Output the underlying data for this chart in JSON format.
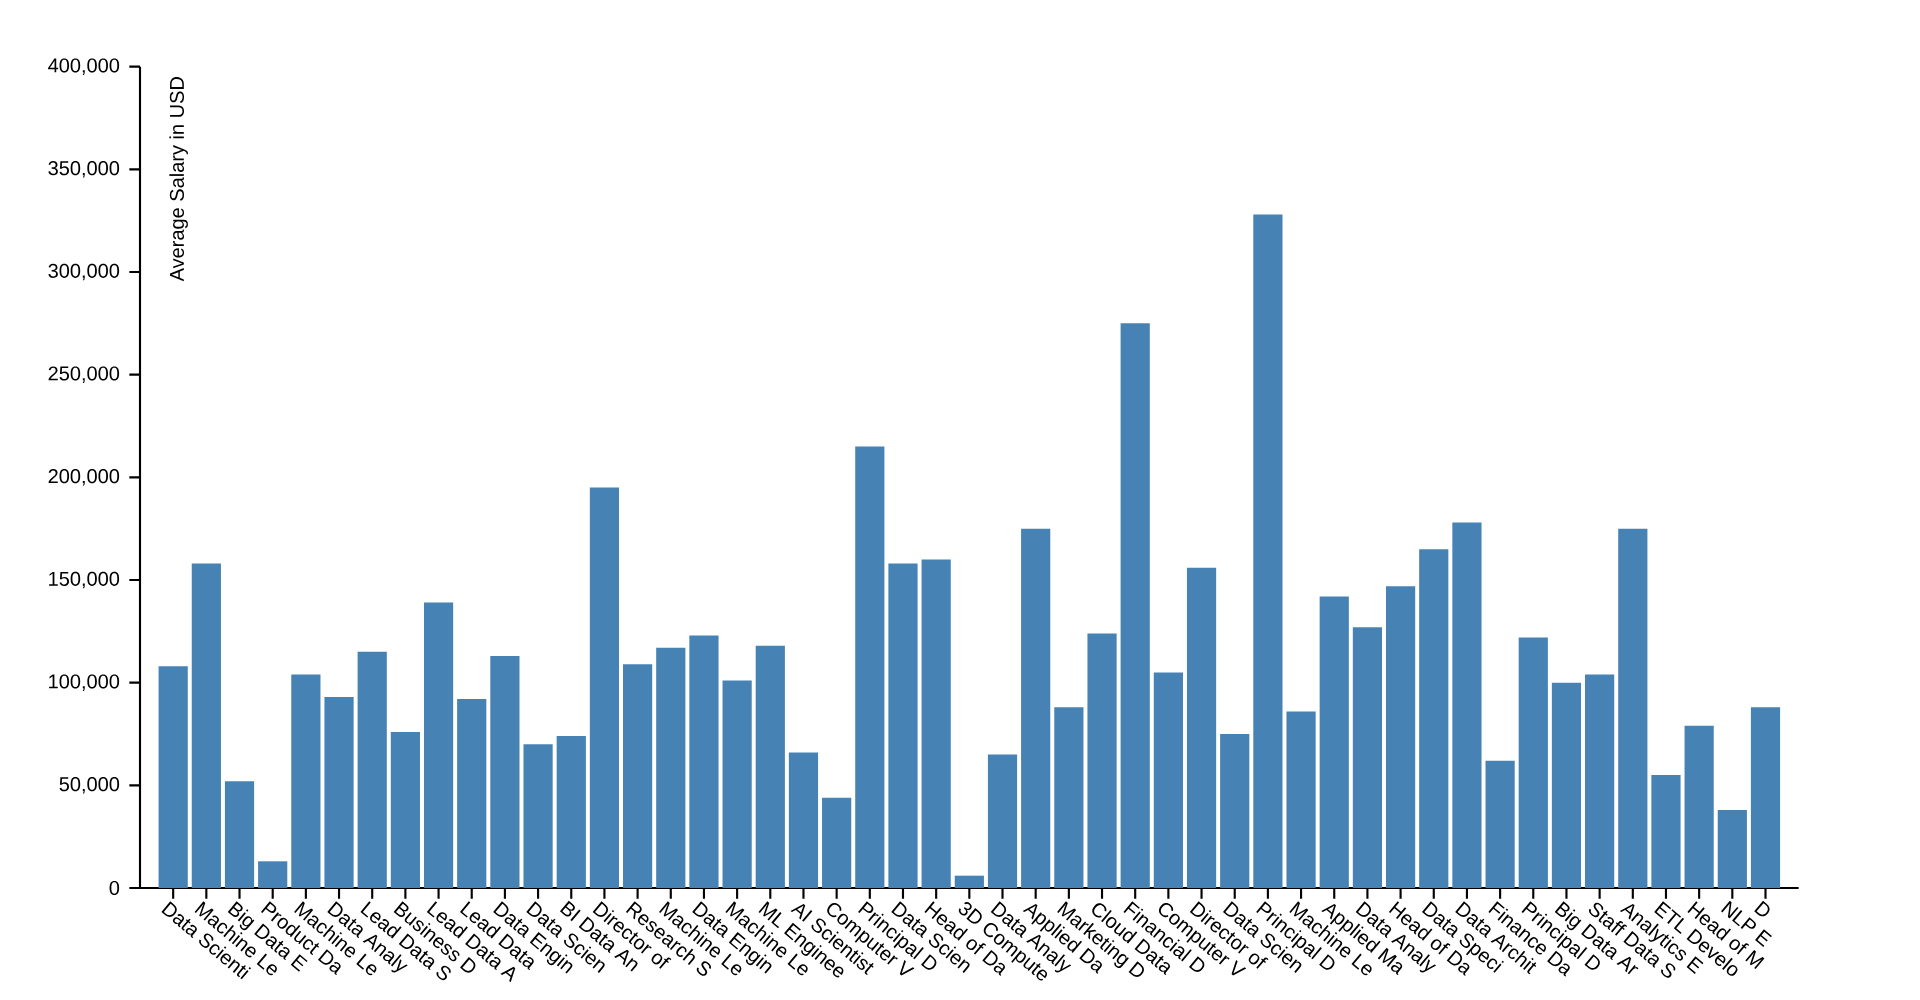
{
  "chart_data": {
    "type": "bar",
    "ylabel": "Average Salary in USD",
    "color": "#4682b4",
    "grid": false,
    "categories": [
      "Data Scienti",
      "Machine Le",
      "Big Data E",
      "Product Da",
      "Machine Le",
      "Data Analy",
      "Lead Data S",
      "Business D",
      "Lead Data A",
      "Lead Data",
      "Data Engin",
      "Data Scien",
      "BI Data An",
      "Director of",
      "Research S",
      "Machine Le",
      "Data Engin",
      "Machine Le",
      "ML Enginee",
      "AI Scientist",
      "Computer V",
      "Principal D",
      "Data Scien",
      "Head of Da",
      "3D Compute",
      "Data Analy",
      "Applied Da",
      "Marketing D",
      "Cloud Data",
      "Financial D",
      "Computer V",
      "Director of",
      "Data Scien",
      "Principal D",
      "Machine Le",
      "Applied Ma",
      "Data Analy",
      "Head of Da",
      "Data Speci",
      "Data Archit",
      "Finance Da",
      "Principal D",
      "Big Data Ar",
      "Staff Data S",
      "Analytics E",
      "ETL Develo",
      "Head of M",
      "NLP E",
      "D"
    ],
    "values": [
      108000,
      158000,
      52000,
      13000,
      104000,
      93000,
      115000,
      76000,
      139000,
      92000,
      113000,
      70000,
      74000,
      195000,
      109000,
      117000,
      123000,
      101000,
      118000,
      66000,
      44000,
      215000,
      158000,
      160000,
      6000,
      65000,
      175000,
      88000,
      124000,
      275000,
      105000,
      156000,
      75000,
      328000,
      86000,
      142000,
      127000,
      147000,
      165000,
      178000,
      62000,
      122000,
      100000,
      104000,
      175000,
      55000,
      79000,
      38000,
      88000
    ],
    "ylim": [
      0,
      400000
    ],
    "yticks": [
      0,
      {
        "value": 50000,
        "label": "50,000"
      },
      {
        "value": 100000,
        "label": "100,000"
      },
      {
        "value": 150000,
        "label": "150,000"
      },
      {
        "value": 200000,
        "label": "200,000"
      },
      {
        "value": 250000,
        "label": "250,000"
      },
      {
        "value": 300000,
        "label": "300,000"
      },
      {
        "value": 350000,
        "label": "350,000"
      },
      {
        "value": 400000,
        "label": "400,000"
      }
    ]
  }
}
